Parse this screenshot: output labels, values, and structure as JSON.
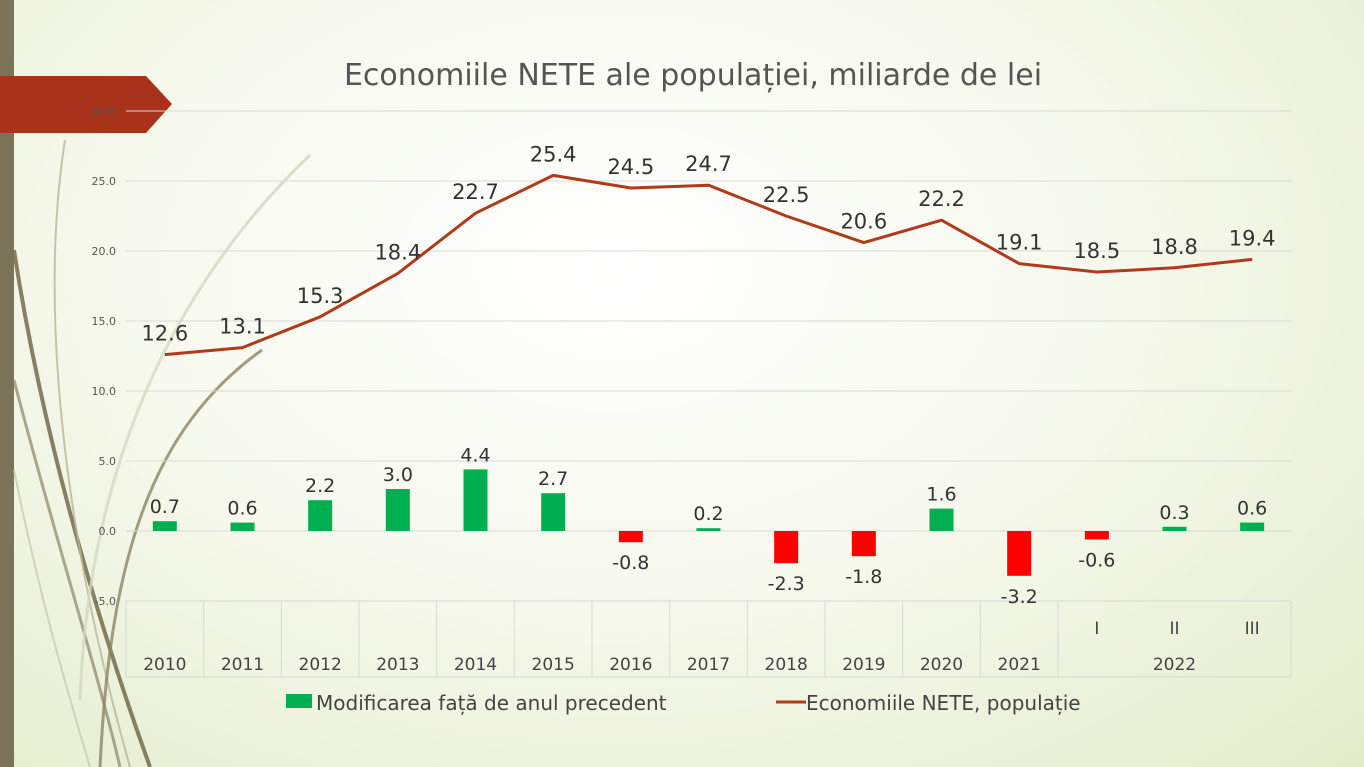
{
  "chart_data": {
    "type": "bar+line",
    "title": "Economiile NETE ale populației, miliarde de lei",
    "y_ticks": [
      "-5.0",
      "0.0",
      "5.0",
      "10.0",
      "15.0",
      "20.0",
      "25.0",
      "30.0"
    ],
    "ylim": [
      -5,
      30
    ],
    "categories": [
      "2010",
      "2011",
      "2012",
      "2013",
      "2014",
      "2015",
      "2016",
      "2017",
      "2018",
      "2019",
      "2020",
      "2021",
      "I",
      "II",
      "III"
    ],
    "group_labels": [
      {
        "label": "2022",
        "from": 12,
        "to": 14
      }
    ],
    "series": [
      {
        "name": "Modificarea față de anul precedent",
        "kind": "bar",
        "color": "#00b050",
        "negative_color": "#ff0000",
        "values": [
          0.7,
          0.6,
          2.2,
          3.0,
          4.4,
          2.7,
          -0.8,
          0.2,
          -2.3,
          -1.8,
          1.6,
          -3.2,
          -0.6,
          0.3,
          0.6
        ],
        "labels": [
          "0.7",
          "0.6",
          "2.2",
          "3.0",
          "4.4",
          "2.7",
          "-0.8",
          "0.2",
          "-2.3",
          "-1.8",
          "1.6",
          "-3.2",
          "-0.6",
          "0.3",
          "0.6"
        ]
      },
      {
        "name": "Economiile NETE, populație",
        "kind": "line",
        "color": "#b03a1a",
        "values": [
          12.6,
          13.1,
          15.3,
          18.4,
          22.7,
          25.4,
          24.5,
          24.7,
          22.5,
          20.6,
          22.2,
          19.1,
          18.5,
          18.8,
          19.4
        ],
        "labels": [
          "12.6",
          "13.1",
          "15.3",
          "18.4",
          "22.7",
          "25.4",
          "24.5",
          "24.7",
          "22.5",
          "20.6",
          "22.2",
          "19.1",
          "18.5",
          "18.8",
          "19.4"
        ]
      }
    ],
    "grid": true,
    "legend": "bottom"
  },
  "colors": {
    "ribbon": "#a8321a",
    "left_bar": "#7a7355",
    "axis_text": "#555555",
    "grid": "#d9d9d9"
  }
}
